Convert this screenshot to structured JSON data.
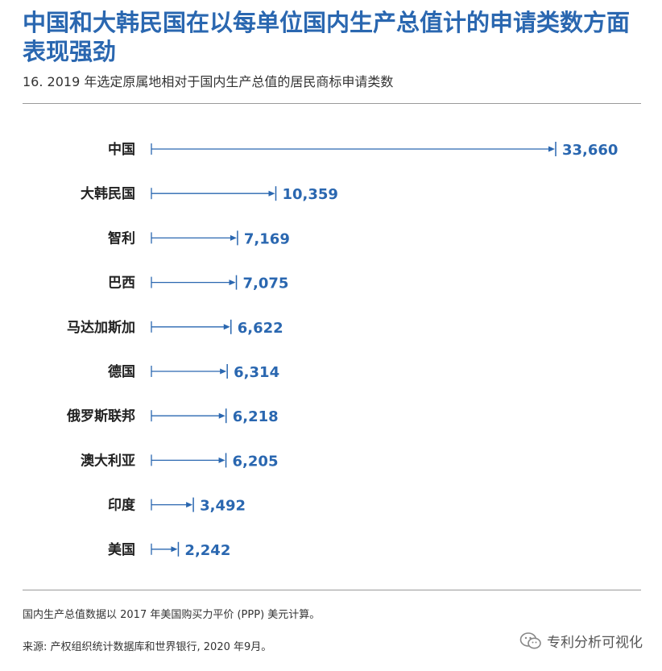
{
  "header": {
    "title": "中国和大韩民国在以每单位国内生产总值计的申请类数方面表现强劲",
    "subtitle": "16. 2019 年选定原属地相对于国内生产总值的居民商标申请类数"
  },
  "chart_data": {
    "type": "bar",
    "categories": [
      "中国",
      "大韩民国",
      "智利",
      "巴西",
      "马达加斯加",
      "德国",
      "俄罗斯联邦",
      "澳大利亚",
      "印度",
      "美国"
    ],
    "values": [
      33660,
      10359,
      7169,
      7075,
      6622,
      6314,
      6218,
      6205,
      3492,
      2242
    ],
    "value_labels": [
      "33,660",
      "10,359",
      "7,169",
      "7,075",
      "6,622",
      "6,314",
      "6,218",
      "6,205",
      "3,492",
      "2,242"
    ],
    "xlim": [
      0,
      33660
    ],
    "orientation": "horizontal",
    "style": "arrow",
    "color": "#2a67b0"
  },
  "footer": {
    "note": "国内生产总值数据以 2017 年美国购买力平价 (PPP) 美元计算。",
    "source": "来源: 产权组织统计数据库和世界银行, 2020 年9月。"
  },
  "watermark": {
    "text": "专利分析可视化",
    "icon": "wechat-icon"
  }
}
